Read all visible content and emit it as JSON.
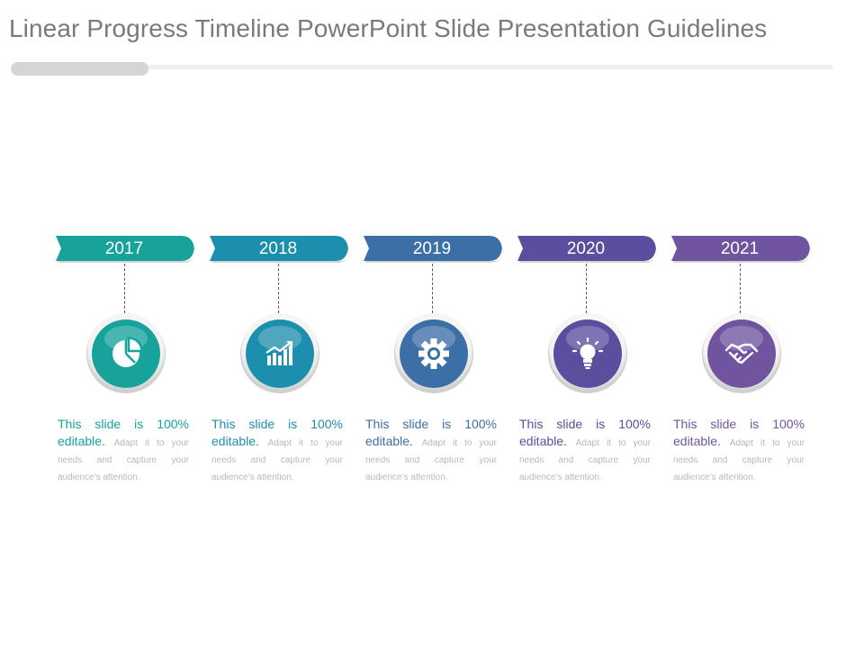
{
  "title": "Linear Progress Timeline PowerPoint Slide Presentation Guidelines",
  "steps": [
    {
      "year": "2017",
      "color": "#17a39b",
      "icon": "pie-chart-icon",
      "lead": "This slide is 100% editable.",
      "body": "Adapt it to your needs and capture your audience’s attention."
    },
    {
      "year": "2018",
      "color": "#1d8fae",
      "icon": "bar-growth-chart-icon",
      "lead": "This slide is 100% editable.",
      "body": "Adapt it to your needs and capture your audience’s attention."
    },
    {
      "year": "2019",
      "color": "#3d6fa7",
      "icon": "gear-icon",
      "lead": "This slide is 100% editable.",
      "body": "Adapt it to your needs and capture your audience’s attention."
    },
    {
      "year": "2020",
      "color": "#5a4e9f",
      "icon": "lightbulb-icon",
      "lead": "This slide is 100% editable.",
      "body": "Adapt it to your needs and capture your audience’s attention."
    },
    {
      "year": "2021",
      "color": "#7054a0",
      "icon": "handshake-icon",
      "lead": "This slide is 100% editable.",
      "body": "Adapt it to your needs and capture your audience’s attention."
    }
  ]
}
